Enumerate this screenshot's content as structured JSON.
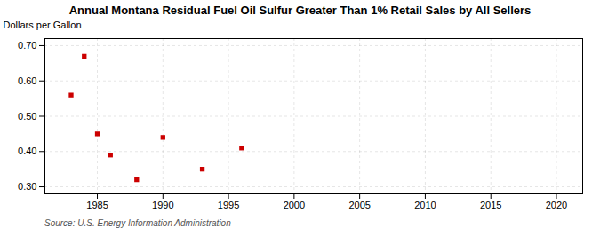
{
  "chart_data": {
    "type": "scatter",
    "title": "Annual Montana Residual Fuel Oil Sulfur Greater Than 1% Retail Sales by All Sellers",
    "ylabel": "Dollars per Gallon",
    "source": "Source: U.S. Energy Information Administration",
    "x": [
      1983,
      1984,
      1985,
      1986,
      1988,
      1990,
      1993,
      1996
    ],
    "values": [
      0.56,
      0.67,
      0.45,
      0.39,
      0.32,
      0.44,
      0.35,
      0.41
    ],
    "color": "#cc0000",
    "marker": "square",
    "xlim": [
      1981,
      2022
    ],
    "ylim": [
      0.28,
      0.72
    ],
    "xticks": [
      1985,
      1990,
      1995,
      2000,
      2005,
      2010,
      2015,
      2020
    ],
    "yticks": [
      {
        "value": 0.3,
        "label": "0.30"
      },
      {
        "value": 0.4,
        "label": "0.40"
      },
      {
        "value": 0.5,
        "label": "0.50"
      },
      {
        "value": 0.6,
        "label": "0.60"
      },
      {
        "value": 0.7,
        "label": "0.70"
      }
    ],
    "grid": true
  }
}
